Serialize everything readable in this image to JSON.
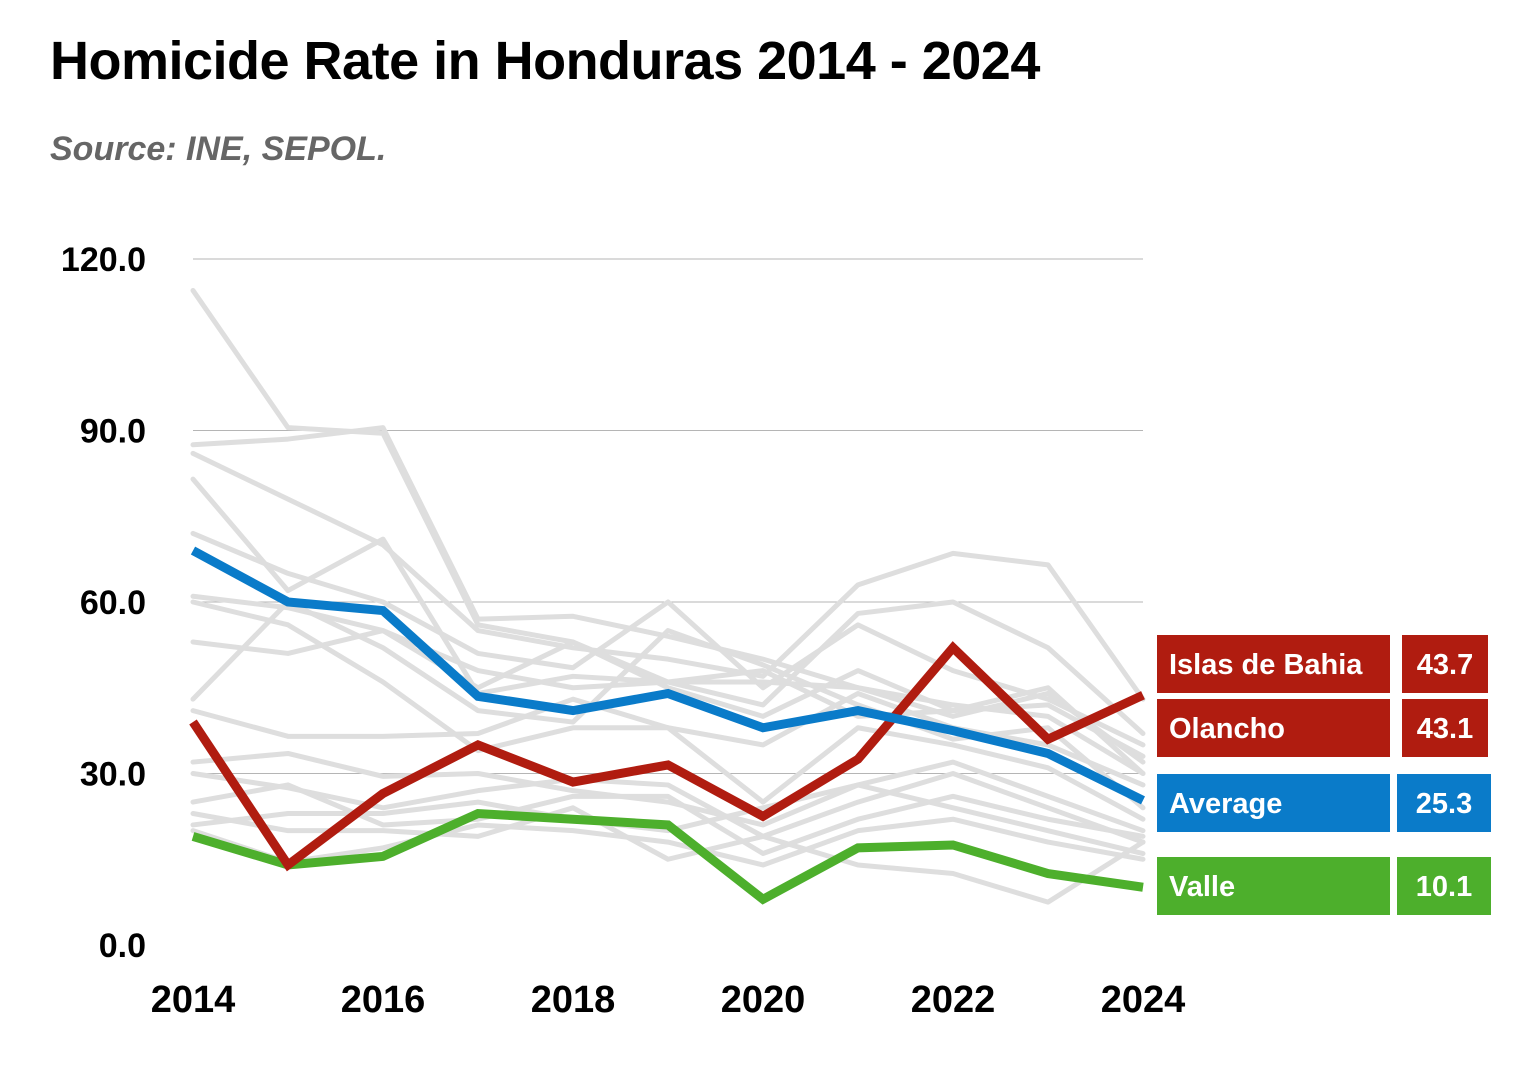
{
  "header": {
    "title": "Homicide Rate in Honduras 2014 - 2024",
    "subtitle": "Source: INE, SEPOL."
  },
  "chart_data": {
    "type": "line",
    "title": "Homicide Rate in Honduras 2014 - 2024",
    "subtitle": "Source: INE, SEPOL.",
    "xlabel": "",
    "ylabel": "",
    "x": [
      2014,
      2015,
      2016,
      2017,
      2018,
      2019,
      2020,
      2021,
      2022,
      2023,
      2024
    ],
    "x_ticks": [
      "2014",
      "2016",
      "2018",
      "2020",
      "2022",
      "2024"
    ],
    "y_ticks": [
      "0.0",
      "30.0",
      "60.0",
      "90.0",
      "120.0"
    ],
    "ylim": [
      0,
      120
    ],
    "grid": true,
    "highlight_series": [
      {
        "name": "Islas de Bahia",
        "label_value": "43.7",
        "color": "#b01c10",
        "values": [
          39.0,
          14.0,
          26.5,
          35.0,
          28.5,
          31.5,
          22.5,
          32.5,
          52.0,
          36.0,
          43.7
        ]
      },
      {
        "name": "Olancho",
        "label_value": "43.1",
        "color": "#b01c10",
        "values": null
      },
      {
        "name": "Average",
        "label_value": "25.3",
        "color": "#0a7bc9",
        "values": [
          69.0,
          60.0,
          58.5,
          43.5,
          41.0,
          44.0,
          38.0,
          41.0,
          37.5,
          33.5,
          25.3
        ]
      },
      {
        "name": "Valle",
        "label_value": "10.1",
        "color": "#4daf2c",
        "values": [
          19.0,
          14.0,
          15.5,
          23.0,
          22.0,
          21.0,
          8.0,
          17.0,
          17.5,
          12.5,
          10.1
        ]
      }
    ],
    "background_series": [
      [
        114.5,
        90.5,
        89.5,
        56.0,
        53.0,
        46.0,
        46.0,
        45.0,
        40.0,
        44.0,
        32.0
      ],
      [
        87.5,
        88.5,
        90.5,
        57.0,
        57.5,
        54.0,
        50.0,
        45.0,
        42.0,
        40.0,
        30.0
      ],
      [
        86.0,
        78.0,
        70.0,
        55.0,
        52.0,
        50.0,
        47.0,
        63.0,
        68.5,
        66.5,
        43.0
      ],
      [
        81.5,
        62.0,
        71.0,
        44.0,
        47.0,
        46.0,
        42.0,
        58.0,
        60.0,
        52.0,
        37.0
      ],
      [
        72.0,
        65.0,
        60.0,
        51.0,
        48.5,
        60.0,
        45.0,
        56.0,
        48.0,
        43.0,
        35.0
      ],
      [
        61.0,
        59.0,
        55.0,
        45.0,
        53.0,
        45.0,
        40.0,
        48.0,
        41.0,
        42.0,
        33.0
      ],
      [
        60.0,
        56.0,
        46.0,
        34.0,
        38.0,
        38.0,
        35.0,
        44.0,
        38.0,
        35.0,
        28.0
      ],
      [
        53.0,
        51.0,
        55.0,
        48.0,
        45.0,
        46.0,
        48.0,
        40.0,
        41.0,
        45.0,
        30.0
      ],
      [
        43.0,
        60.0,
        52.0,
        41.0,
        39.0,
        55.0,
        49.0,
        42.0,
        36.0,
        38.0,
        24.0
      ],
      [
        41.0,
        36.5,
        36.5,
        37.0,
        43.0,
        38.0,
        25.0,
        38.0,
        35.0,
        31.0,
        22.0
      ],
      [
        32.0,
        33.5,
        29.5,
        30.0,
        27.0,
        25.0,
        21.0,
        28.0,
        32.0,
        26.0,
        20.0
      ],
      [
        30.0,
        27.5,
        24.0,
        27.0,
        29.0,
        28.0,
        19.0,
        25.0,
        30.0,
        24.0,
        18.0
      ],
      [
        25.0,
        28.0,
        21.0,
        22.0,
        26.0,
        26.0,
        16.0,
        22.0,
        26.0,
        22.0,
        19.0
      ],
      [
        23.0,
        20.0,
        20.0,
        19.0,
        24.0,
        15.0,
        19.0,
        14.0,
        12.5,
        7.5,
        18.0
      ],
      [
        21.0,
        23.0,
        23.0,
        25.0,
        22.0,
        20.0,
        24.0,
        28.0,
        24.0,
        20.0,
        16.0
      ],
      [
        20.0,
        14.5,
        17.0,
        21.0,
        20.0,
        18.0,
        14.0,
        20.0,
        22.0,
        18.0,
        15.0
      ]
    ]
  }
}
